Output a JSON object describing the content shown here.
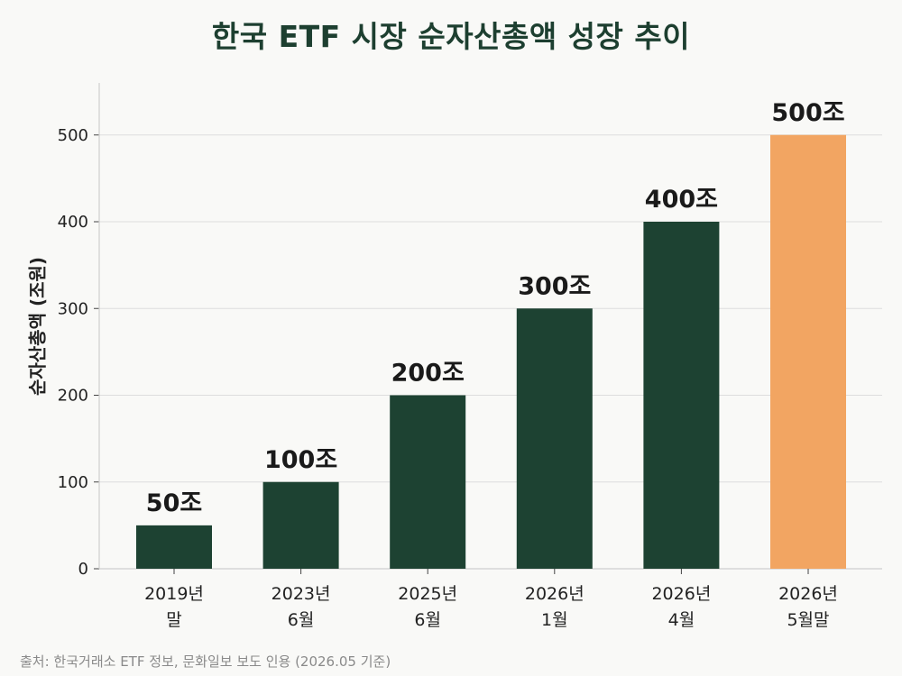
{
  "chart_data": {
    "type": "bar",
    "title": "한국 ETF 시장 순자산총액 성장 추이",
    "ylabel": "순자산총액 (조원)",
    "xlabel": "",
    "ylim": [
      0,
      560
    ],
    "yticks": [
      "0",
      "100",
      "200",
      "300",
      "400",
      "500"
    ],
    "grid": true,
    "categories": [
      [
        "2019년",
        "말"
      ],
      [
        "2023년",
        "6월"
      ],
      [
        "2025년",
        "6월"
      ],
      [
        "2026년",
        "1월"
      ],
      [
        "2026년",
        "4월"
      ],
      [
        "2026년",
        "5월말"
      ]
    ],
    "values": [
      50,
      100,
      200,
      300,
      400,
      500
    ],
    "value_labels": [
      "50조",
      "100조",
      "200조",
      "300조",
      "400조",
      "500조"
    ],
    "colors": {
      "default": "#1d4232",
      "highlight": "#f2a562",
      "title": "#1d3f30",
      "grid": "#dddddd"
    },
    "highlight_index": 5
  },
  "source": "출처: 한국거래소 ETF 정보, 문화일보 보도 인용 (2026.05 기준)"
}
